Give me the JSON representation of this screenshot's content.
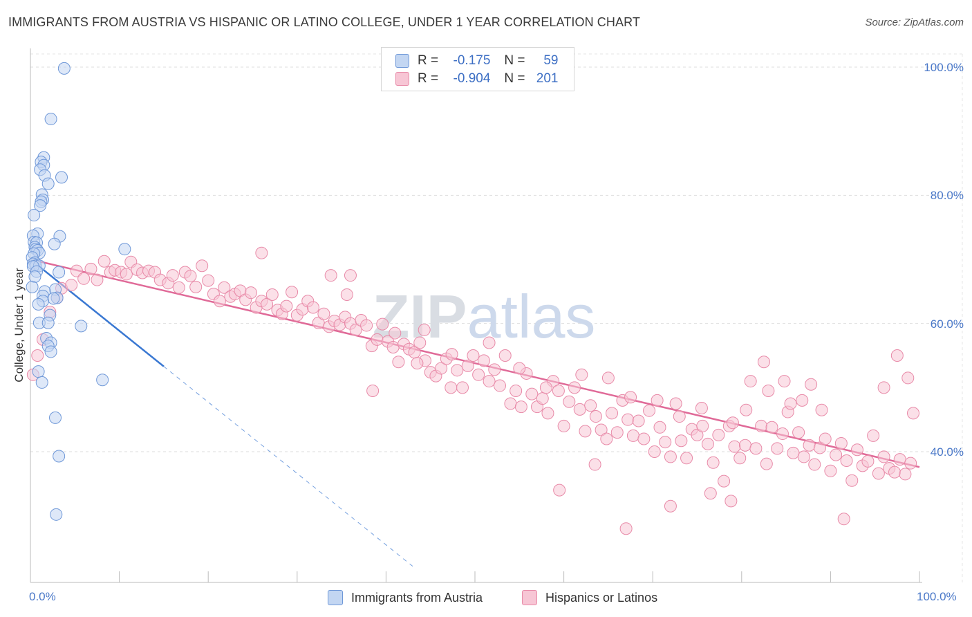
{
  "title": "IMMIGRANTS FROM AUSTRIA VS HISPANIC OR LATINO COLLEGE, UNDER 1 YEAR CORRELATION CHART",
  "source": "Source: ZipAtlas.com",
  "watermark": "ZIPatlas",
  "legend_top": {
    "rows": [
      {
        "r_label": "R =",
        "r_value": "-0.175",
        "n_label": "N =",
        "n_value": "59"
      },
      {
        "r_label": "R =",
        "r_value": "-0.904",
        "n_label": "N =",
        "n_value": "201"
      }
    ]
  },
  "legend_bottom": [
    "Immigrants from Austria",
    "Hispanics or Latinos"
  ],
  "colors": {
    "blue_fill": "#c3d6f2",
    "blue_stroke": "#6f98d8",
    "blue_line": "#3a78d2",
    "pink_fill": "#f7c6d5",
    "pink_stroke": "#e88aa8",
    "pink_line": "#e06a98",
    "axis_label": "#4a78c8"
  },
  "chart_data": {
    "type": "scatter",
    "xlabel": "",
    "ylabel": "College, Under 1 year",
    "xlim": [
      0,
      100
    ],
    "ylim": [
      20,
      102
    ],
    "x_tick_labels": [
      "0.0%",
      "100.0%"
    ],
    "y_tick_labels": [
      "40.0%",
      "60.0%",
      "80.0%",
      "100.0%"
    ],
    "y_ticks": [
      40,
      60,
      80,
      100
    ],
    "grid": true,
    "legend_position": "top-center",
    "series": [
      {
        "name": "Immigrants from Austria",
        "trend": {
          "x1": 0,
          "y1": 70.0,
          "x2": 15,
          "y2": 53.3,
          "dash_to_x": 43
        },
        "points": [
          [
            3.8,
            99.8
          ],
          [
            2.3,
            91.9
          ],
          [
            1.5,
            85.9
          ],
          [
            1.2,
            85.2
          ],
          [
            1.5,
            84.7
          ],
          [
            1.1,
            84.0
          ],
          [
            1.6,
            83.1
          ],
          [
            3.5,
            82.8
          ],
          [
            2.0,
            81.8
          ],
          [
            1.3,
            80.1
          ],
          [
            1.4,
            79.3
          ],
          [
            1.2,
            79.0
          ],
          [
            1.1,
            78.4
          ],
          [
            0.4,
            76.9
          ],
          [
            0.8,
            74.0
          ],
          [
            3.3,
            73.6
          ],
          [
            0.3,
            73.7
          ],
          [
            0.4,
            72.7
          ],
          [
            0.7,
            72.6
          ],
          [
            2.7,
            72.4
          ],
          [
            0.5,
            71.9
          ],
          [
            0.6,
            71.6
          ],
          [
            0.8,
            71.4
          ],
          [
            1.0,
            71.0
          ],
          [
            0.4,
            70.9
          ],
          [
            10.6,
            71.6
          ],
          [
            0.2,
            70.3
          ],
          [
            0.5,
            69.5
          ],
          [
            0.3,
            69.3
          ],
          [
            0.6,
            69.0
          ],
          [
            1.0,
            69.0
          ],
          [
            0.3,
            68.9
          ],
          [
            0.7,
            68.1
          ],
          [
            3.2,
            68.0
          ],
          [
            0.5,
            67.3
          ],
          [
            0.2,
            65.7
          ],
          [
            2.8,
            65.3
          ],
          [
            1.6,
            65.0
          ],
          [
            3.0,
            64.0
          ],
          [
            1.4,
            64.3
          ],
          [
            2.6,
            63.9
          ],
          [
            1.4,
            63.5
          ],
          [
            0.9,
            63.0
          ],
          [
            2.2,
            61.3
          ],
          [
            1.0,
            60.1
          ],
          [
            2.0,
            60.1
          ],
          [
            5.7,
            59.6
          ],
          [
            1.8,
            57.7
          ],
          [
            2.3,
            57.0
          ],
          [
            2.0,
            56.5
          ],
          [
            2.3,
            55.6
          ],
          [
            0.9,
            52.5
          ],
          [
            1.3,
            50.8
          ],
          [
            8.1,
            51.2
          ],
          [
            2.8,
            45.3
          ],
          [
            3.2,
            39.3
          ],
          [
            2.9,
            30.2
          ]
        ]
      },
      {
        "name": "Hispanics or Latinos",
        "trend": {
          "x1": 0,
          "y1": 70.0,
          "x2": 100,
          "y2": 37.6
        },
        "points": [
          [
            0.3,
            52.0
          ],
          [
            0.8,
            55.0
          ],
          [
            1.4,
            57.5
          ],
          [
            2.2,
            61.8
          ],
          [
            3.0,
            64.0
          ],
          [
            3.5,
            65.5
          ],
          [
            4.6,
            66.0
          ],
          [
            5.2,
            68.2
          ],
          [
            6.0,
            67.0
          ],
          [
            6.8,
            68.5
          ],
          [
            7.5,
            66.8
          ],
          [
            8.3,
            69.7
          ],
          [
            9.0,
            68.0
          ],
          [
            9.5,
            68.3
          ],
          [
            10.2,
            68.0
          ],
          [
            10.8,
            67.7
          ],
          [
            11.3,
            69.6
          ],
          [
            12.0,
            68.4
          ],
          [
            12.6,
            67.9
          ],
          [
            13.3,
            68.2
          ],
          [
            14.0,
            68.0
          ],
          [
            14.6,
            66.8
          ],
          [
            15.5,
            66.3
          ],
          [
            16.0,
            67.5
          ],
          [
            16.7,
            65.6
          ],
          [
            17.4,
            68.0
          ],
          [
            18.0,
            67.4
          ],
          [
            18.6,
            65.7
          ],
          [
            19.3,
            69.0
          ],
          [
            20.0,
            66.7
          ],
          [
            20.6,
            64.6
          ],
          [
            21.3,
            63.5
          ],
          [
            21.8,
            65.6
          ],
          [
            22.5,
            64.2
          ],
          [
            23.0,
            64.6
          ],
          [
            23.6,
            65.1
          ],
          [
            24.2,
            63.7
          ],
          [
            24.8,
            64.8
          ],
          [
            25.4,
            62.5
          ],
          [
            26.0,
            63.5
          ],
          [
            26.6,
            63.0
          ],
          [
            27.2,
            64.5
          ],
          [
            27.8,
            62.1
          ],
          [
            28.3,
            61.5
          ],
          [
            28.8,
            62.7
          ],
          [
            29.4,
            64.9
          ],
          [
            30.0,
            61.3
          ],
          [
            30.6,
            62.2
          ],
          [
            31.2,
            63.5
          ],
          [
            31.8,
            62.5
          ],
          [
            32.4,
            60.1
          ],
          [
            33.0,
            61.5
          ],
          [
            33.6,
            59.5
          ],
          [
            34.2,
            60.4
          ],
          [
            34.8,
            59.8
          ],
          [
            35.4,
            61.0
          ],
          [
            36.0,
            60.0
          ],
          [
            36.6,
            59.0
          ],
          [
            37.2,
            60.5
          ],
          [
            37.8,
            59.7
          ],
          [
            38.4,
            56.5
          ],
          [
            39.0,
            57.5
          ],
          [
            39.6,
            59.9
          ],
          [
            40.2,
            57.2
          ],
          [
            40.8,
            56.3
          ],
          [
            41.4,
            54.0
          ],
          [
            42.0,
            56.8
          ],
          [
            42.6,
            56.0
          ],
          [
            43.2,
            55.5
          ],
          [
            43.8,
            57.0
          ],
          [
            44.4,
            54.2
          ],
          [
            45.0,
            52.4
          ],
          [
            45.6,
            51.8
          ],
          [
            46.2,
            53.0
          ],
          [
            46.8,
            54.5
          ],
          [
            47.4,
            55.2
          ],
          [
            48.0,
            52.7
          ],
          [
            48.6,
            50.0
          ],
          [
            49.2,
            53.4
          ],
          [
            49.8,
            55.0
          ],
          [
            50.4,
            52.0
          ],
          [
            51.0,
            54.2
          ],
          [
            51.6,
            51.0
          ],
          [
            52.2,
            52.8
          ],
          [
            52.8,
            50.3
          ],
          [
            53.4,
            55.0
          ],
          [
            54.0,
            47.5
          ],
          [
            54.6,
            49.5
          ],
          [
            55.2,
            47.0
          ],
          [
            55.8,
            52.2
          ],
          [
            56.4,
            49.0
          ],
          [
            57.0,
            47.0
          ],
          [
            57.6,
            48.3
          ],
          [
            58.2,
            46.0
          ],
          [
            58.8,
            51.0
          ],
          [
            59.4,
            49.5
          ],
          [
            60.0,
            44.0
          ],
          [
            60.6,
            47.8
          ],
          [
            61.2,
            50.0
          ],
          [
            61.8,
            46.6
          ],
          [
            62.4,
            43.2
          ],
          [
            63.0,
            47.2
          ],
          [
            63.6,
            45.5
          ],
          [
            64.2,
            43.4
          ],
          [
            64.8,
            42.0
          ],
          [
            65.4,
            46.0
          ],
          [
            66.0,
            43.0
          ],
          [
            66.6,
            48.0
          ],
          [
            67.2,
            45.0
          ],
          [
            67.8,
            42.5
          ],
          [
            68.4,
            44.8
          ],
          [
            69.0,
            42.0
          ],
          [
            69.6,
            46.4
          ],
          [
            70.2,
            40.0
          ],
          [
            70.8,
            43.8
          ],
          [
            71.4,
            41.5
          ],
          [
            72.0,
            39.2
          ],
          [
            72.6,
            47.5
          ],
          [
            73.2,
            41.7
          ],
          [
            73.8,
            39.0
          ],
          [
            74.4,
            43.5
          ],
          [
            75.0,
            42.6
          ],
          [
            75.6,
            44.0
          ],
          [
            76.2,
            41.2
          ],
          [
            76.8,
            38.3
          ],
          [
            77.4,
            42.6
          ],
          [
            78.0,
            35.4
          ],
          [
            78.6,
            44.0
          ],
          [
            79.2,
            40.8
          ],
          [
            79.8,
            39.0
          ],
          [
            80.4,
            41.0
          ],
          [
            81.0,
            51.0
          ],
          [
            81.6,
            40.5
          ],
          [
            82.2,
            44.0
          ],
          [
            82.8,
            38.1
          ],
          [
            83.4,
            43.8
          ],
          [
            84.0,
            40.5
          ],
          [
            84.6,
            42.8
          ],
          [
            85.2,
            46.2
          ],
          [
            85.8,
            39.8
          ],
          [
            86.4,
            43.0
          ],
          [
            87.0,
            39.2
          ],
          [
            87.6,
            41.0
          ],
          [
            88.2,
            38.0
          ],
          [
            88.8,
            40.6
          ],
          [
            89.4,
            42.0
          ],
          [
            90.0,
            37.0
          ],
          [
            90.6,
            39.5
          ],
          [
            91.2,
            41.3
          ],
          [
            91.8,
            38.6
          ],
          [
            92.4,
            35.5
          ],
          [
            93.0,
            40.3
          ],
          [
            93.6,
            37.8
          ],
          [
            94.2,
            38.5
          ],
          [
            94.8,
            42.5
          ],
          [
            95.4,
            36.6
          ],
          [
            96.0,
            39.2
          ],
          [
            96.6,
            37.4
          ],
          [
            97.2,
            36.8
          ],
          [
            97.8,
            38.8
          ],
          [
            98.4,
            36.5
          ],
          [
            99.0,
            38.2
          ],
          [
            67.0,
            28.0
          ],
          [
            72.0,
            31.5
          ],
          [
            76.5,
            33.5
          ],
          [
            78.8,
            32.3
          ],
          [
            82.5,
            54.0
          ],
          [
            84.8,
            51.0
          ],
          [
            86.8,
            48.0
          ],
          [
            89.0,
            46.5
          ],
          [
            91.5,
            29.5
          ],
          [
            96.0,
            50.0
          ],
          [
            97.5,
            55.0
          ],
          [
            99.3,
            46.0
          ],
          [
            98.7,
            51.5
          ],
          [
            59.5,
            34.0
          ],
          [
            63.5,
            38.0
          ],
          [
            26.0,
            71.0
          ],
          [
            33.8,
            67.5
          ],
          [
            36.0,
            67.5
          ],
          [
            41.0,
            58.5
          ],
          [
            44.3,
            59.0
          ],
          [
            51.6,
            57.0
          ],
          [
            35.6,
            64.5
          ],
          [
            43.5,
            53.8
          ],
          [
            47.3,
            50.0
          ],
          [
            38.5,
            49.5
          ],
          [
            55.0,
            53.0
          ],
          [
            58.0,
            50.0
          ],
          [
            62.0,
            52.0
          ],
          [
            65.0,
            51.5
          ],
          [
            67.5,
            48.5
          ],
          [
            70.5,
            48.0
          ],
          [
            73.0,
            45.5
          ],
          [
            75.5,
            46.8
          ],
          [
            79.0,
            44.5
          ],
          [
            80.5,
            46.5
          ],
          [
            83.0,
            49.5
          ],
          [
            85.5,
            47.5
          ],
          [
            87.8,
            50.5
          ]
        ]
      }
    ]
  }
}
